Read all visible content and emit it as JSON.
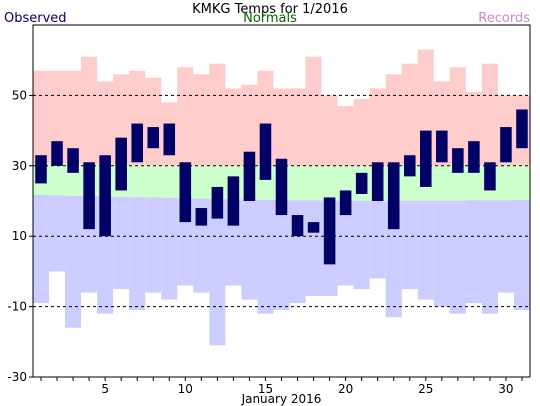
{
  "chart_data": {
    "type": "bar",
    "title": "KMKG Temps for 1/2016",
    "xlabel": "January 2016",
    "ylabel": "",
    "legend": [
      {
        "name": "Observed",
        "color": "#000066"
      },
      {
        "name": "Normals",
        "color": "#006600"
      },
      {
        "name": "Records",
        "color": "#cc88cc"
      }
    ],
    "ylim": [
      -30,
      70
    ],
    "yticks": [
      -30,
      -10,
      10,
      30,
      50
    ],
    "xticks": [
      5,
      10,
      15,
      20,
      25,
      30
    ],
    "days": [
      1,
      2,
      3,
      4,
      5,
      6,
      7,
      8,
      9,
      10,
      11,
      12,
      13,
      14,
      15,
      16,
      17,
      18,
      19,
      20,
      21,
      22,
      23,
      24,
      25,
      26,
      27,
      28,
      29,
      30,
      31
    ],
    "observed_low": [
      25,
      30,
      28,
      12,
      10,
      23,
      31,
      35,
      33,
      14,
      13,
      15,
      13,
      20,
      26,
      16,
      10,
      11,
      2,
      16,
      22,
      20,
      12,
      27,
      24,
      31,
      28,
      28,
      23,
      31,
      35
    ],
    "observed_high": [
      33,
      37,
      35,
      31,
      33,
      38,
      42,
      41,
      42,
      31,
      18,
      24,
      27,
      34,
      42,
      32,
      16,
      14,
      21,
      23,
      28,
      31,
      31,
      33,
      40,
      40,
      35,
      37,
      31,
      41,
      46
    ],
    "normal_low": [
      21.7,
      21.6,
      21.5,
      21.4,
      21.3,
      21.2,
      21.1,
      21,
      20.9,
      20.8,
      20.7,
      20.6,
      20.5,
      20.4,
      20.3,
      20.3,
      20.2,
      20.2,
      20.1,
      20.1,
      20.1,
      20.1,
      20.1,
      20.1,
      20.1,
      20.1,
      20.1,
      20.2,
      20.2,
      20.2,
      20.3
    ],
    "normal_high": [
      30.8,
      30.7,
      30.6,
      30.5,
      30.4,
      30.3,
      30.2,
      30.1,
      30.1,
      30,
      30,
      30,
      29.9,
      29.9,
      29.9,
      29.9,
      29.9,
      29.9,
      29.9,
      29.9,
      29.9,
      29.9,
      29.9,
      29.9,
      30,
      30,
      30,
      30,
      30.1,
      30.1,
      30.2
    ],
    "record_low": [
      -9,
      0,
      -16,
      -6,
      -12,
      -5,
      -11,
      -6,
      -8,
      -4,
      -6,
      -21,
      -4,
      -8,
      -12,
      -11,
      -9,
      -7,
      -7,
      -4,
      -5,
      -2,
      -13,
      -5,
      -8,
      -10,
      -12,
      -9,
      -12,
      -6,
      -11
    ],
    "record_high": [
      57,
      57,
      57,
      61,
      54,
      56,
      57,
      55,
      48,
      58,
      56,
      59,
      52,
      53,
      57,
      52,
      52,
      61,
      50,
      47,
      49,
      52,
      56,
      59,
      63,
      54,
      58,
      51,
      59,
      50,
      50
    ],
    "colors": {
      "observed": "#000066",
      "normal": "#ccffcc",
      "record_high": "#ffcccc",
      "record_low": "#ccccff",
      "grid": "#000000",
      "normals_text": "#006600",
      "records_text": "#cc88cc"
    }
  }
}
